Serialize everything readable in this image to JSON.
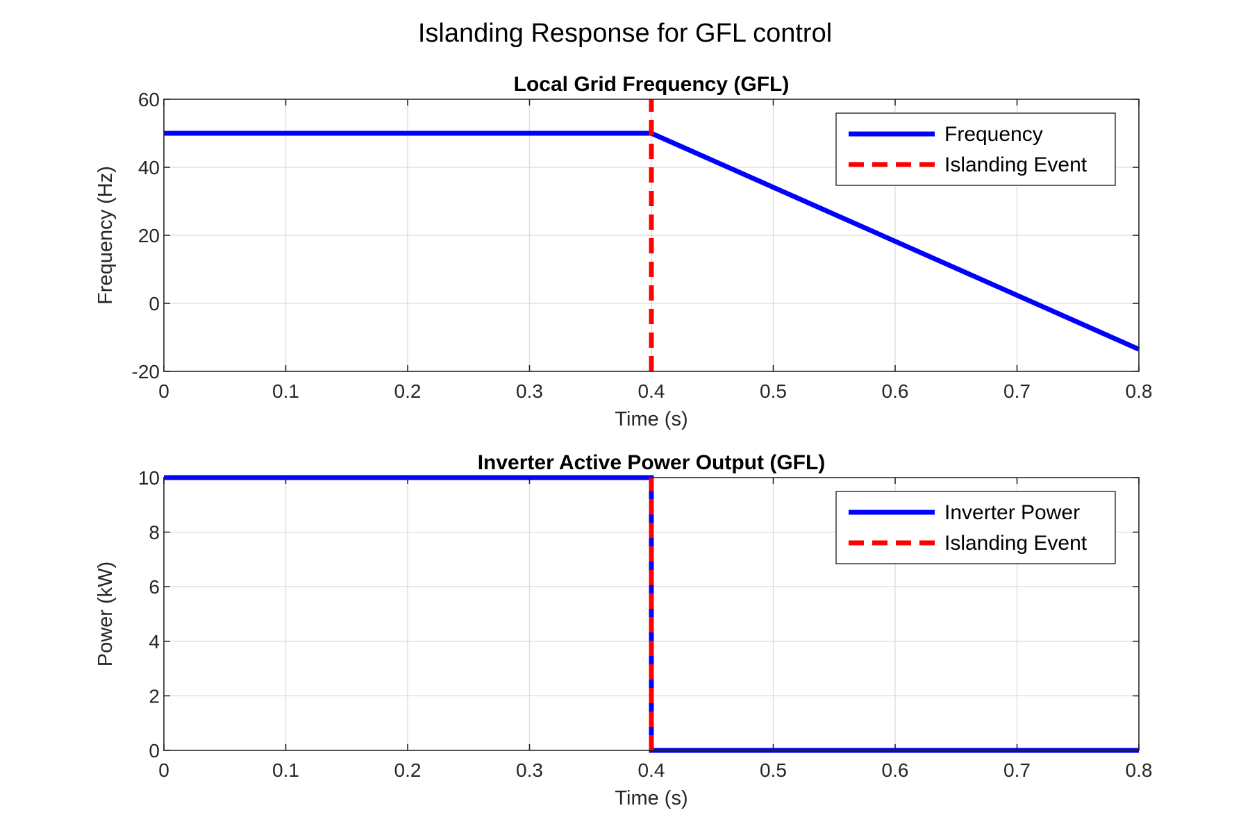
{
  "figure": {
    "suptitle": "Islanding Response for GFL control"
  },
  "chart_data": [
    {
      "type": "line",
      "title": "Local Grid Frequency (GFL)",
      "xlabel": "Time (s)",
      "ylabel": "Frequency (Hz)",
      "xlim": [
        0,
        0.8
      ],
      "ylim": [
        -20,
        60
      ],
      "xticks": [
        0,
        0.1,
        0.2,
        0.3,
        0.4,
        0.5,
        0.6,
        0.7,
        0.8
      ],
      "xtick_labels": [
        "0",
        "0.1",
        "0.2",
        "0.3",
        "0.4",
        "0.5",
        "0.6",
        "0.7",
        "0.8"
      ],
      "yticks": [
        -20,
        0,
        20,
        40,
        60
      ],
      "ytick_labels": [
        "-20",
        "0",
        "20",
        "40",
        "60"
      ],
      "grid": true,
      "legend_location": "top-right",
      "series": [
        {
          "name": "Frequency",
          "style": "solid",
          "color": "#0000ff",
          "x": [
            0,
            0.4,
            0.8
          ],
          "y": [
            50,
            50,
            -13.5
          ]
        },
        {
          "name": "Islanding Event",
          "style": "dashed",
          "color": "#ff0000",
          "x": [
            0.4,
            0.4
          ],
          "y": [
            -20,
            60
          ]
        }
      ]
    },
    {
      "type": "line",
      "title": "Inverter Active Power Output (GFL)",
      "xlabel": "Time (s)",
      "ylabel": "Power (kW)",
      "xlim": [
        0,
        0.8
      ],
      "ylim": [
        0,
        10
      ],
      "xticks": [
        0,
        0.1,
        0.2,
        0.3,
        0.4,
        0.5,
        0.6,
        0.7,
        0.8
      ],
      "xtick_labels": [
        "0",
        "0.1",
        "0.2",
        "0.3",
        "0.4",
        "0.5",
        "0.6",
        "0.7",
        "0.8"
      ],
      "yticks": [
        0,
        2,
        4,
        6,
        8,
        10
      ],
      "ytick_labels": [
        "0",
        "2",
        "4",
        "6",
        "8",
        "10"
      ],
      "grid": true,
      "legend_location": "top-right",
      "series": [
        {
          "name": "Inverter Power",
          "style": "solid",
          "color": "#0000ff",
          "x": [
            0,
            0.4,
            0.4,
            0.8
          ],
          "y": [
            10,
            10,
            0,
            0
          ]
        },
        {
          "name": "Islanding Event",
          "style": "dashed",
          "color": "#ff0000",
          "x": [
            0.4,
            0.4
          ],
          "y": [
            0,
            10
          ]
        }
      ]
    }
  ]
}
